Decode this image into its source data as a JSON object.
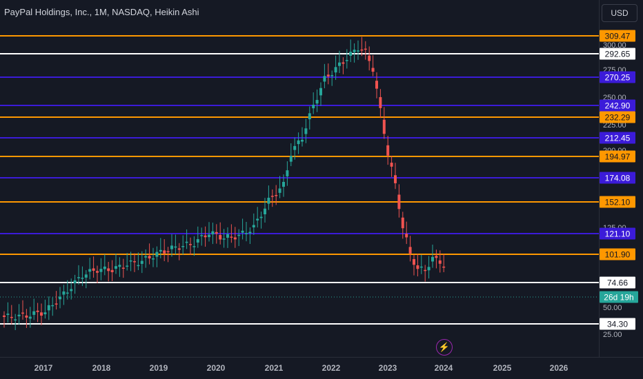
{
  "header": {
    "title": "PayPal Holdings, Inc., 1M, NASDAQ, Heikin Ashi",
    "currency": "USD"
  },
  "colors": {
    "background": "#151924",
    "orange_line": "#ff9800",
    "blue_line": "#3b1bd9",
    "white_line": "#ffffff",
    "up_candle": "#26a69a",
    "down_candle": "#ef5350",
    "current_price": "#26a69a"
  },
  "price_axis": {
    "ticks": [
      "300.00",
      "275.00",
      "250.00",
      "225.00",
      "200.00",
      "125.00",
      "50.00",
      "25.00"
    ]
  },
  "horizontal_levels": [
    {
      "label": "309.47",
      "color": "orange"
    },
    {
      "label": "292.65",
      "color": "white"
    },
    {
      "label": "270.25",
      "color": "blue"
    },
    {
      "label": "242.90",
      "color": "blue"
    },
    {
      "label": "232.29",
      "color": "orange"
    },
    {
      "label": "212.45",
      "color": "blue"
    },
    {
      "label": "194.97",
      "color": "orange"
    },
    {
      "label": "174.08",
      "color": "blue"
    },
    {
      "label": "152.10",
      "color": "orange"
    },
    {
      "label": "121.10",
      "color": "blue"
    },
    {
      "label": "101.90",
      "color": "orange"
    },
    {
      "label": "74.66",
      "color": "white"
    },
    {
      "label": "34.30",
      "color": "white"
    }
  ],
  "countdown": "26d 19h",
  "time_axis": {
    "years": [
      "2017",
      "2018",
      "2019",
      "2020",
      "2021",
      "2022",
      "2023",
      "2024",
      "2025",
      "2026"
    ]
  },
  "events_icon": "lightning-bolt-icon"
}
